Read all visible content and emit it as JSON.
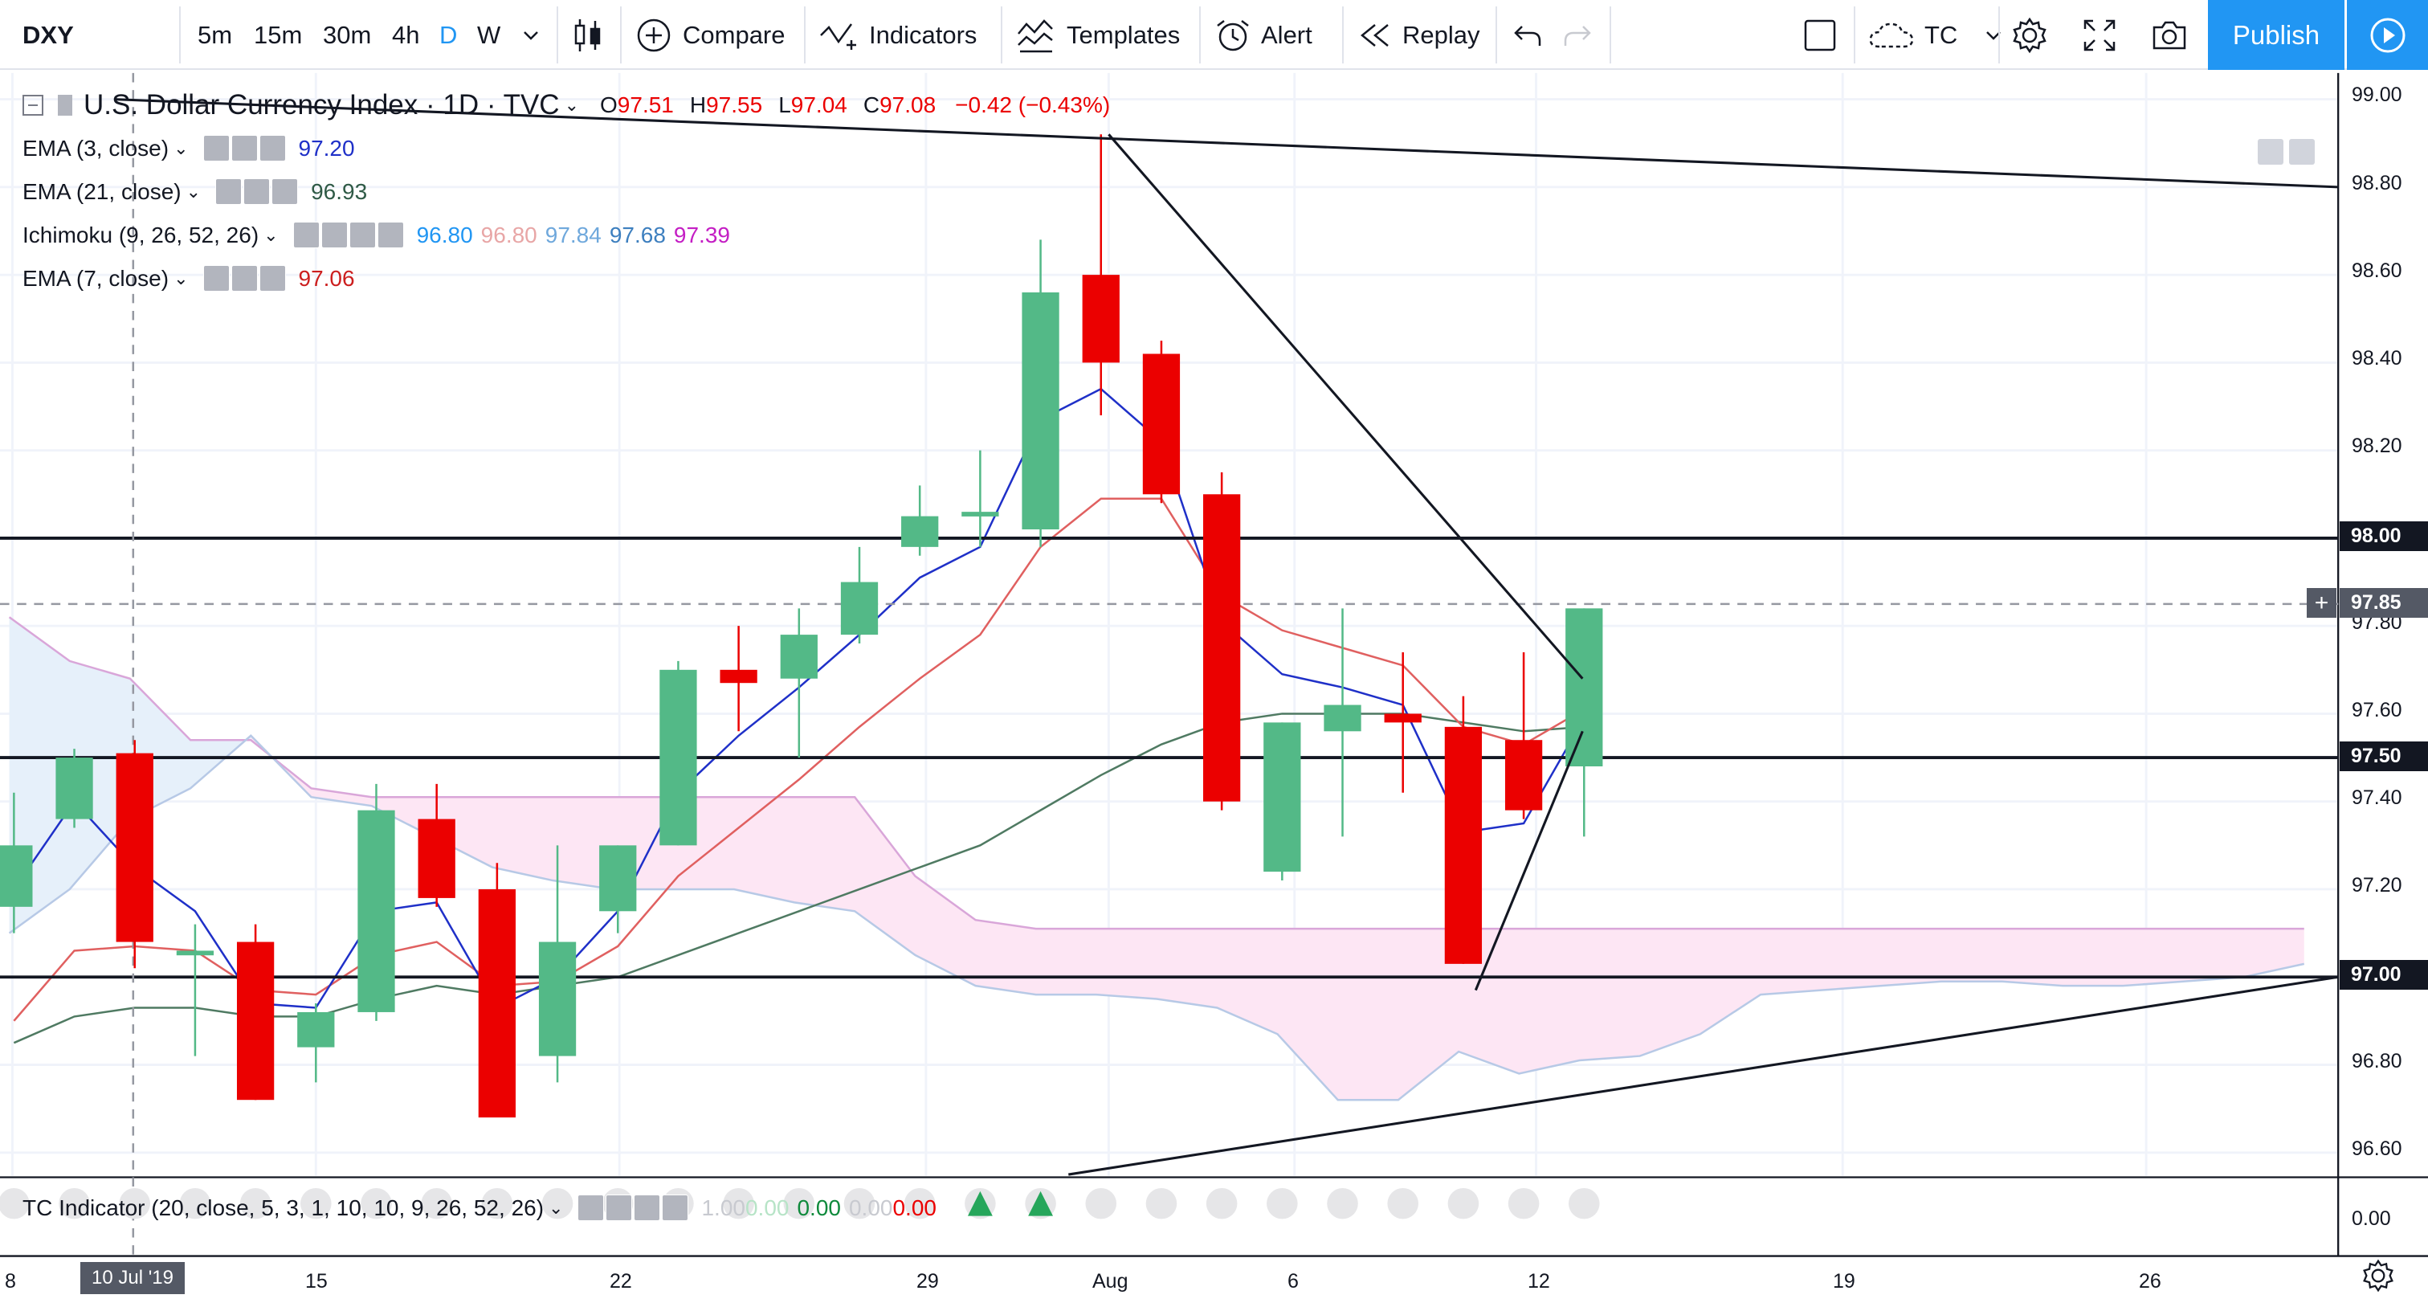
{
  "toolbar": {
    "symbol": "DXY",
    "intervals": [
      "5m",
      "15m",
      "30m",
      "4h",
      "D",
      "W"
    ],
    "active_interval": "D",
    "compare_label": "Compare",
    "indicators_label": "Indicators",
    "templates_label": "Templates",
    "alert_label": "Alert",
    "replay_label": "Replay",
    "layout_label": "TC",
    "publish_label": "Publish"
  },
  "legend": {
    "title": "U.S. Dollar Currency Index · 1D · TVC",
    "o_label": "O",
    "o_value": "97.51",
    "h_label": "H",
    "h_value": "97.55",
    "l_label": "L",
    "l_value": "97.04",
    "c_label": "C",
    "c_value": "97.08",
    "change": "−0.42 (−0.43%)",
    "ema3": {
      "label": "EMA (3, close)",
      "value": "97.20"
    },
    "ema21": {
      "label": "EMA (21, close)",
      "value": "96.93"
    },
    "ichimoku": {
      "label": "Ichimoku (9, 26, 52, 26)",
      "values": [
        "96.80",
        "96.80",
        "97.84",
        "97.68",
        "97.39"
      ]
    },
    "ema7": {
      "label": "EMA (7, close)",
      "value": "97.06"
    },
    "tc": {
      "label": "TC Indicator (20, close, 5, 3, 1, 10, 10, 9, 26, 52, 26)",
      "values": [
        "1.00",
        "0.00",
        "0.00",
        "0.00",
        "0.00"
      ]
    }
  },
  "colors": {
    "up": "#53b987",
    "down": "#eb0000",
    "ema3": "#1f30c8",
    "ema21": "#3a6a4a",
    "ema7": "#e06060",
    "cloud": "#fde6f4",
    "accent": "#2196f3"
  },
  "price_axis": {
    "labels": [
      "99.00",
      "98.80",
      "98.60",
      "98.40",
      "98.20",
      "97.80",
      "97.60",
      "97.40",
      "97.20",
      "96.80",
      "96.60"
    ],
    "tags": [
      {
        "price": "98.00",
        "bg": "#131722"
      },
      {
        "price": "97.85",
        "bg": "#545965"
      },
      {
        "price": "97.50",
        "bg": "#131722"
      },
      {
        "price": "97.00",
        "bg": "#131722"
      }
    ],
    "osc_zero": "0.00"
  },
  "time_axis": {
    "labels": [
      "8",
      "15",
      "22",
      "29",
      "Aug",
      "6",
      "12",
      "19",
      "26"
    ],
    "crosshair_date": "10 Jul '19"
  },
  "chart_data": {
    "type": "candlestick",
    "title": "U.S. Dollar Currency Index · 1D · TVC",
    "ylim": [
      96.55,
      99.05
    ],
    "horizontal_levels": [
      98.0,
      97.5,
      97.0
    ],
    "candles": [
      {
        "o": 97.16,
        "h": 97.42,
        "l": 97.1,
        "c": 97.3
      },
      {
        "o": 97.36,
        "h": 97.52,
        "l": 97.34,
        "c": 97.5
      },
      {
        "o": 97.51,
        "h": 97.54,
        "l": 97.02,
        "c": 97.08
      },
      {
        "o": 97.06,
        "h": 97.12,
        "l": 96.82,
        "c": 97.06
      },
      {
        "o": 97.08,
        "h": 97.12,
        "l": 96.72,
        "c": 96.72
      },
      {
        "o": 96.84,
        "h": 96.94,
        "l": 96.76,
        "c": 96.92
      },
      {
        "o": 96.92,
        "h": 97.44,
        "l": 96.9,
        "c": 97.38
      },
      {
        "o": 97.36,
        "h": 97.44,
        "l": 97.16,
        "c": 97.18
      },
      {
        "o": 97.2,
        "h": 97.26,
        "l": 96.68,
        "c": 96.68
      },
      {
        "o": 96.82,
        "h": 97.3,
        "l": 96.76,
        "c": 97.08
      },
      {
        "o": 97.15,
        "h": 97.3,
        "l": 97.1,
        "c": 97.3
      },
      {
        "o": 97.3,
        "h": 97.72,
        "l": 97.3,
        "c": 97.7
      },
      {
        "o": 97.7,
        "h": 97.8,
        "l": 97.56,
        "c": 97.67
      },
      {
        "o": 97.68,
        "h": 97.84,
        "l": 97.5,
        "c": 97.78
      },
      {
        "o": 97.78,
        "h": 97.98,
        "l": 97.76,
        "c": 97.9
      },
      {
        "o": 97.98,
        "h": 98.12,
        "l": 97.96,
        "c": 98.05
      },
      {
        "o": 98.06,
        "h": 98.2,
        "l": 97.98,
        "c": 98.06
      },
      {
        "o": 98.02,
        "h": 98.68,
        "l": 97.98,
        "c": 98.56
      },
      {
        "o": 98.6,
        "h": 98.92,
        "l": 98.28,
        "c": 98.4
      },
      {
        "o": 98.42,
        "h": 98.45,
        "l": 98.08,
        "c": 98.1
      },
      {
        "o": 98.1,
        "h": 98.15,
        "l": 97.38,
        "c": 97.4
      },
      {
        "o": 97.24,
        "h": 97.58,
        "l": 97.22,
        "c": 97.58
      },
      {
        "o": 97.56,
        "h": 97.84,
        "l": 97.32,
        "c": 97.62
      },
      {
        "o": 97.6,
        "h": 97.74,
        "l": 97.42,
        "c": 97.58
      },
      {
        "o": 97.57,
        "h": 97.64,
        "l": 97.03,
        "c": 97.03
      },
      {
        "o": 97.54,
        "h": 97.74,
        "l": 97.36,
        "c": 97.38
      },
      {
        "o": 97.48,
        "h": 97.84,
        "l": 97.32,
        "c": 97.84
      }
    ],
    "ema3": [
      97.2,
      97.4,
      97.25,
      97.15,
      96.94,
      96.93,
      97.15,
      97.17,
      96.93,
      97.0,
      97.15,
      97.42,
      97.55,
      97.66,
      97.78,
      97.91,
      97.98,
      98.27,
      98.34,
      98.22,
      97.81,
      97.69,
      97.66,
      97.62,
      97.33,
      97.35,
      97.59
    ],
    "ema7": [
      96.9,
      97.06,
      97.07,
      97.06,
      96.97,
      96.96,
      97.05,
      97.08,
      96.98,
      96.99,
      97.07,
      97.23,
      97.34,
      97.45,
      97.57,
      97.68,
      97.78,
      97.98,
      98.09,
      98.09,
      97.87,
      97.79,
      97.75,
      97.71,
      97.57,
      97.53,
      97.61
    ],
    "ema21": [
      96.85,
      96.91,
      96.93,
      96.93,
      96.91,
      96.91,
      96.95,
      96.98,
      96.96,
      96.98,
      97.0,
      97.05,
      97.1,
      97.15,
      97.2,
      97.25,
      97.3,
      97.38,
      97.46,
      97.53,
      97.58,
      97.6,
      97.6,
      97.6,
      97.58,
      97.56,
      97.57
    ],
    "kumo_top": [
      97.82,
      97.72,
      97.68,
      97.54,
      97.54,
      97.43,
      97.41,
      97.41,
      97.41,
      97.41,
      97.41,
      97.41,
      97.41,
      97.41,
      97.41,
      97.23,
      97.13,
      97.11,
      97.11,
      97.11,
      97.11,
      97.11,
      97.11,
      97.11,
      97.11,
      97.11,
      97.11,
      97.11,
      97.11,
      97.11,
      97.11,
      97.11,
      97.11,
      97.11,
      97.11,
      97.11,
      97.11,
      97.11,
      97.11
    ],
    "kumo_bottom": [
      97.1,
      97.2,
      97.36,
      97.43,
      97.55,
      97.41,
      97.39,
      97.32,
      97.25,
      97.22,
      97.2,
      97.2,
      97.2,
      97.17,
      97.15,
      97.05,
      96.98,
      96.96,
      96.96,
      96.95,
      96.93,
      96.87,
      96.72,
      96.72,
      96.83,
      96.78,
      96.81,
      96.82,
      96.87,
      96.96,
      96.97,
      96.98,
      96.99,
      96.99,
      96.98,
      96.98,
      96.99,
      97.0,
      97.03
    ]
  }
}
